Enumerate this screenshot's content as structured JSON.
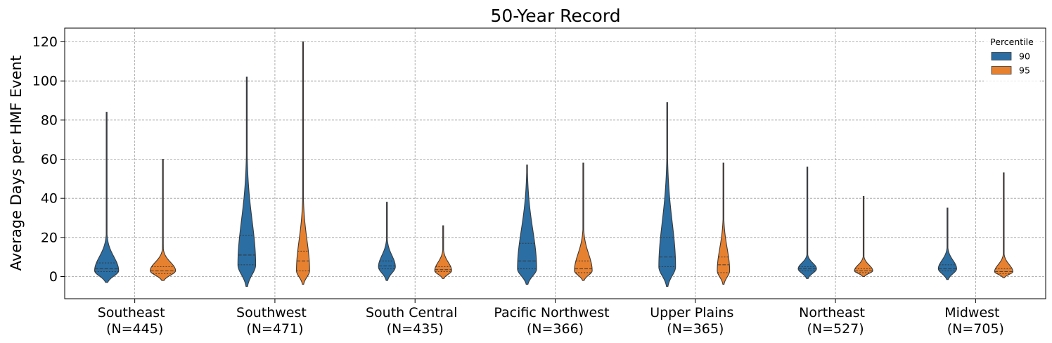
{
  "chart_data": {
    "type": "violin",
    "title": "50-Year Record",
    "xlabel": "",
    "ylabel": "Average Days per HMF Event",
    "ylim": [
      -11,
      126
    ],
    "yticks": [
      0,
      20,
      40,
      60,
      80,
      100,
      120
    ],
    "grid": true,
    "legend": {
      "title": "Percentile",
      "placement": "top-right"
    },
    "categories": [
      {
        "name": "Southeast",
        "n": "(N=445)"
      },
      {
        "name": "Southwest",
        "n": "(N=471)"
      },
      {
        "name": "South Central",
        "n": "(N=435)"
      },
      {
        "name": "Pacific Northwest",
        "n": "(N=366)"
      },
      {
        "name": "Upper Plains",
        "n": "(N=365)"
      },
      {
        "name": "Northeast",
        "n": "(N=527)"
      },
      {
        "name": "Midwest",
        "n": "(N=705)"
      }
    ],
    "series": [
      {
        "name": "90",
        "color": "#2b6ea3",
        "violins": [
          {
            "min": -3,
            "max": 84,
            "q1": 2.5,
            "median": 4,
            "q3": 7,
            "mode": 3,
            "width": 0.95,
            "hw": 18
          },
          {
            "min": -5,
            "max": 102,
            "q1": 6,
            "median": 11,
            "q3": 21,
            "mode": 6,
            "width": 0.9,
            "hw": 14
          },
          {
            "min": -2,
            "max": 38,
            "q1": 4,
            "median": 5.5,
            "q3": 8,
            "mode": 5,
            "width": 1.0,
            "hw": 12
          },
          {
            "min": -4,
            "max": 57,
            "q1": 4,
            "median": 8,
            "q3": 17,
            "mode": 4,
            "width": 0.85,
            "hw": 16
          },
          {
            "min": -5,
            "max": 89,
            "q1": 5,
            "median": 10,
            "q3": 20,
            "mode": 5,
            "width": 0.85,
            "hw": 14
          },
          {
            "min": -1,
            "max": 56,
            "q1": 3,
            "median": 4,
            "q3": 5,
            "mode": 4,
            "width": 1.0,
            "hw": 13
          },
          {
            "min": -1.5,
            "max": 35,
            "q1": 3,
            "median": 4,
            "q3": 6,
            "mode": 4,
            "width": 1.0,
            "hw": 13
          }
        ]
      },
      {
        "name": "95",
        "color": "#e8812f",
        "violins": [
          {
            "min": -2,
            "max": 60,
            "q1": 1.5,
            "median": 3,
            "q3": 5,
            "mode": 3,
            "width": 1.0,
            "hw": 18
          },
          {
            "min": -4,
            "max": 120,
            "q1": 3,
            "median": 8,
            "q3": 13,
            "mode": 3,
            "width": 0.85,
            "hw": 11
          },
          {
            "min": -1,
            "max": 26,
            "q1": 2.5,
            "median": 3.5,
            "q3": 5,
            "mode": 3,
            "width": 1.0,
            "hw": 12
          },
          {
            "min": -2,
            "max": 58,
            "q1": 2,
            "median": 4,
            "q3": 8,
            "mode": 3,
            "width": 0.9,
            "hw": 14
          },
          {
            "min": -4,
            "max": 58,
            "q1": 2,
            "median": 6,
            "q3": 10,
            "mode": 3,
            "width": 0.8,
            "hw": 11
          },
          {
            "min": 0,
            "max": 41,
            "q1": 2,
            "median": 3,
            "q3": 4,
            "mode": 3,
            "width": 1.0,
            "hw": 13
          },
          {
            "min": -0.5,
            "max": 53,
            "q1": 1.5,
            "median": 2.5,
            "q3": 4,
            "mode": 2.5,
            "width": 1.0,
            "hw": 13
          }
        ]
      }
    ]
  }
}
